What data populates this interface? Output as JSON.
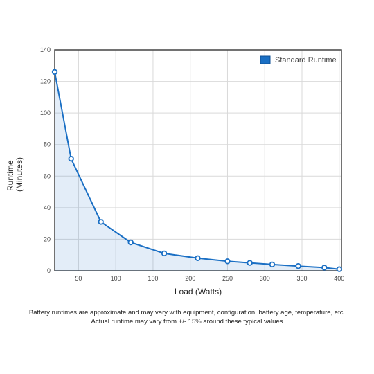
{
  "chart_data": {
    "type": "line",
    "xlabel": "Load (Watts)",
    "ylabel": [
      "Runtime",
      "(Minutes)"
    ],
    "xlim": [
      18,
      403
    ],
    "ylim": [
      0,
      140
    ],
    "xticks": [
      50,
      100,
      150,
      200,
      250,
      300,
      350,
      400
    ],
    "yticks": [
      0,
      20,
      40,
      60,
      80,
      100,
      120,
      140
    ],
    "grid": true,
    "legend_position": "top-right",
    "series": [
      {
        "name": "Standard Runtime",
        "color": "#1a6fc4",
        "x": [
          18,
          40,
          80,
          120,
          165,
          210,
          250,
          280,
          310,
          345,
          380,
          400
        ],
        "y": [
          126,
          71,
          31,
          18,
          11,
          8,
          6,
          5,
          4,
          3,
          2,
          1
        ]
      }
    ]
  },
  "footnote": {
    "line1": "Battery runtimes are approximate and may vary with equipment, configuration, battery age, temperature, etc.",
    "line2": "Actual runtime may vary from +/- 15% around these typical values"
  }
}
